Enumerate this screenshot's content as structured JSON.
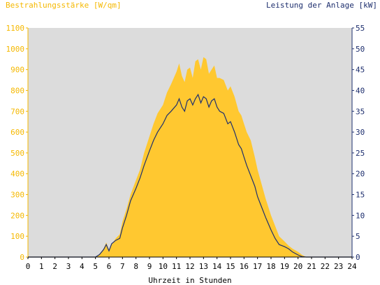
{
  "chart_data": {
    "type": "area",
    "left_axis_label": "Bestrahlungsstärke [W/qm]",
    "right_axis_label": "Leistung der Anlage [kW]",
    "xlabel": "Uhrzeit in Stunden",
    "xlim": [
      0,
      24
    ],
    "ylim_left": [
      0,
      1100
    ],
    "ylim_right": [
      0,
      55
    ],
    "x_ticks": [
      "0",
      "1",
      "2",
      "3",
      "4",
      "5",
      "6",
      "7",
      "8",
      "9",
      "10",
      "11",
      "12",
      "13",
      "14",
      "15",
      "16",
      "17",
      "18",
      "19",
      "20",
      "21",
      "22",
      "23",
      "24"
    ],
    "y_left_ticks": [
      "0",
      "100",
      "200",
      "300",
      "400",
      "500",
      "600",
      "700",
      "800",
      "900",
      "1000",
      "1100"
    ],
    "y_right_ticks": [
      "0",
      "5",
      "10",
      "15",
      "20",
      "25",
      "30",
      "35",
      "40",
      "45",
      "50",
      "55"
    ],
    "grid": false,
    "colors": {
      "irradiance_fill": "#FFC830",
      "power_line": "#1E2F6E",
      "plot_background": "#DCDCDC",
      "left_axis_text": "#F5B800",
      "right_axis_text": "#1E2F6E"
    },
    "series": [
      {
        "axis": "left",
        "style": "filled-area",
        "x": [
          0,
          5.0,
          5.3,
          5.6,
          5.8,
          6.0,
          6.2,
          6.5,
          6.8,
          7.0,
          7.3,
          7.6,
          8.0,
          8.3,
          8.6,
          9.0,
          9.3,
          9.6,
          10.0,
          10.3,
          10.6,
          11.0,
          11.2,
          11.4,
          11.6,
          11.8,
          12.0,
          12.2,
          12.4,
          12.6,
          12.8,
          13.0,
          13.2,
          13.4,
          13.6,
          13.8,
          14.0,
          14.2,
          14.5,
          14.8,
          15.0,
          15.3,
          15.6,
          15.8,
          16.0,
          16.2,
          16.5,
          16.8,
          17.0,
          17.3,
          17.6,
          18.0,
          18.3,
          18.6,
          19.0,
          19.3,
          19.6,
          20.0,
          20.3,
          20.6,
          24
        ],
        "y": [
          0,
          0,
          15,
          40,
          70,
          35,
          60,
          90,
          110,
          170,
          230,
          300,
          370,
          420,
          500,
          580,
          640,
          690,
          730,
          790,
          830,
          890,
          930,
          870,
          840,
          900,
          910,
          860,
          940,
          950,
          900,
          960,
          950,
          880,
          900,
          920,
          860,
          860,
          850,
          800,
          820,
          770,
          700,
          680,
          640,
          600,
          560,
          480,
          420,
          350,
          280,
          200,
          150,
          100,
          75,
          55,
          40,
          25,
          10,
          0,
          0
        ]
      },
      {
        "axis": "right",
        "style": "line",
        "x": [
          0,
          5.0,
          5.3,
          5.6,
          5.8,
          6.0,
          6.2,
          6.5,
          6.8,
          7.0,
          7.3,
          7.6,
          8.0,
          8.3,
          8.6,
          9.0,
          9.3,
          9.6,
          10.0,
          10.3,
          10.6,
          11.0,
          11.2,
          11.4,
          11.6,
          11.8,
          12.0,
          12.2,
          12.4,
          12.6,
          12.8,
          13.0,
          13.2,
          13.4,
          13.6,
          13.8,
          14.0,
          14.2,
          14.5,
          14.8,
          15.0,
          15.3,
          15.6,
          15.8,
          16.0,
          16.2,
          16.5,
          16.8,
          17.0,
          17.3,
          17.6,
          18.0,
          18.3,
          18.6,
          19.0,
          19.3,
          19.6,
          20.0,
          20.3,
          20.6,
          24
        ],
        "y": [
          0,
          0,
          0.6,
          1.8,
          3.0,
          1.5,
          3.2,
          4.0,
          4.5,
          7.0,
          10.0,
          13.5,
          16.5,
          19.0,
          22.0,
          25.5,
          28.0,
          30.0,
          32.0,
          34.0,
          35.0,
          36.5,
          38.0,
          36.0,
          35.0,
          37.5,
          38.0,
          36.5,
          38.0,
          39.0,
          37.0,
          38.5,
          38.0,
          36.0,
          37.5,
          38.0,
          36.0,
          35.0,
          34.5,
          32.0,
          32.5,
          30.0,
          27.0,
          26.0,
          24.0,
          22.0,
          19.5,
          17.0,
          14.5,
          12.0,
          9.5,
          6.5,
          4.5,
          3.0,
          2.5,
          2.0,
          1.2,
          0.5,
          0.1,
          0,
          0
        ]
      }
    ]
  }
}
